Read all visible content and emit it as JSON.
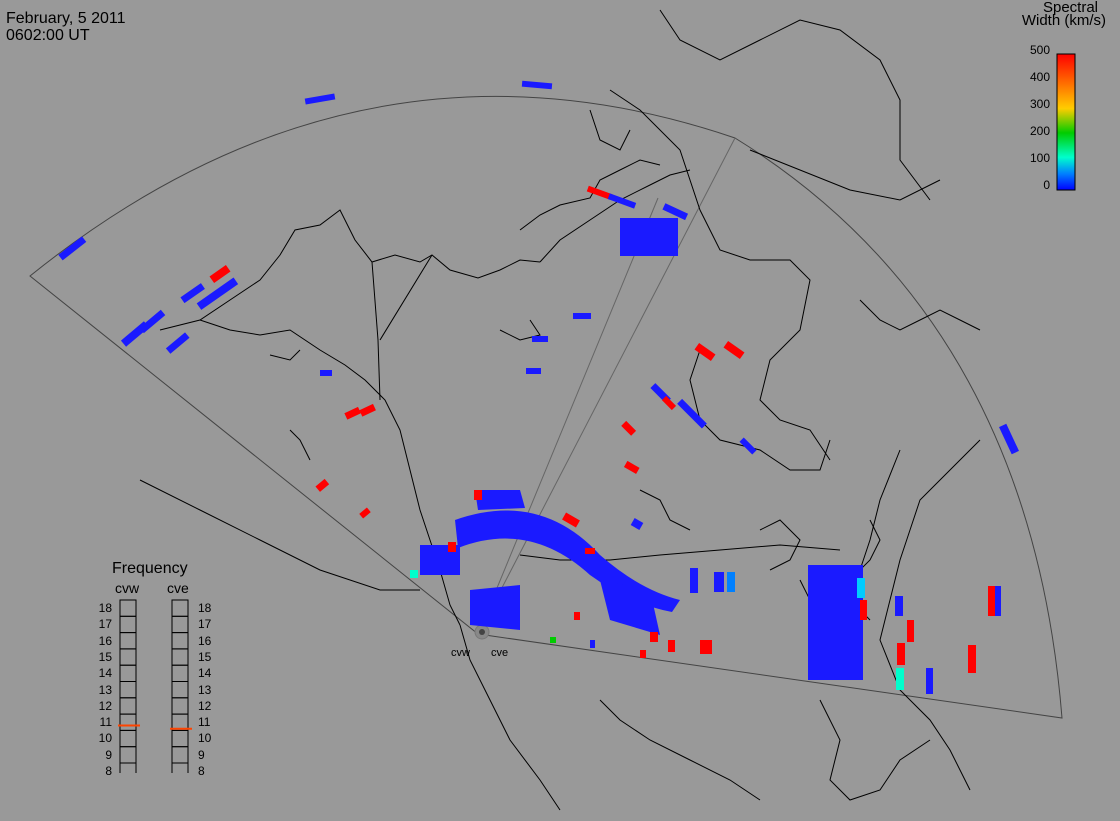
{
  "header": {
    "date": "February, 5 2011",
    "time": "0602:00 UT"
  },
  "legend": {
    "title_line1": "Spectral",
    "title_line2": "Width (km/s)",
    "ticks": [
      "500",
      "400",
      "300",
      "200",
      "100",
      "0"
    ],
    "colors": [
      "#ff0000",
      "#ff8800",
      "#ffff00",
      "#00cc00",
      "#00ffcc",
      "#0000ff"
    ]
  },
  "frequency_panel": {
    "title": "Frequency",
    "left_label": "cvw",
    "right_label": "cve",
    "ticks": [
      "18",
      "17",
      "16",
      "15",
      "14",
      "13",
      "12",
      "11",
      "10",
      "9",
      "8"
    ],
    "cvw_value_mhz": 10.8,
    "cve_value_mhz": 10.6,
    "marker_color": "#ff4400"
  },
  "radars": [
    {
      "code": "cvw"
    },
    {
      "code": "cve"
    }
  ],
  "colors": {
    "background": "#999999",
    "coastline": "#000000",
    "fov_outline": "#555555",
    "echo_low": "#1a1aff",
    "echo_high": "#ff0000",
    "echo_mid": "#00ffcc"
  }
}
